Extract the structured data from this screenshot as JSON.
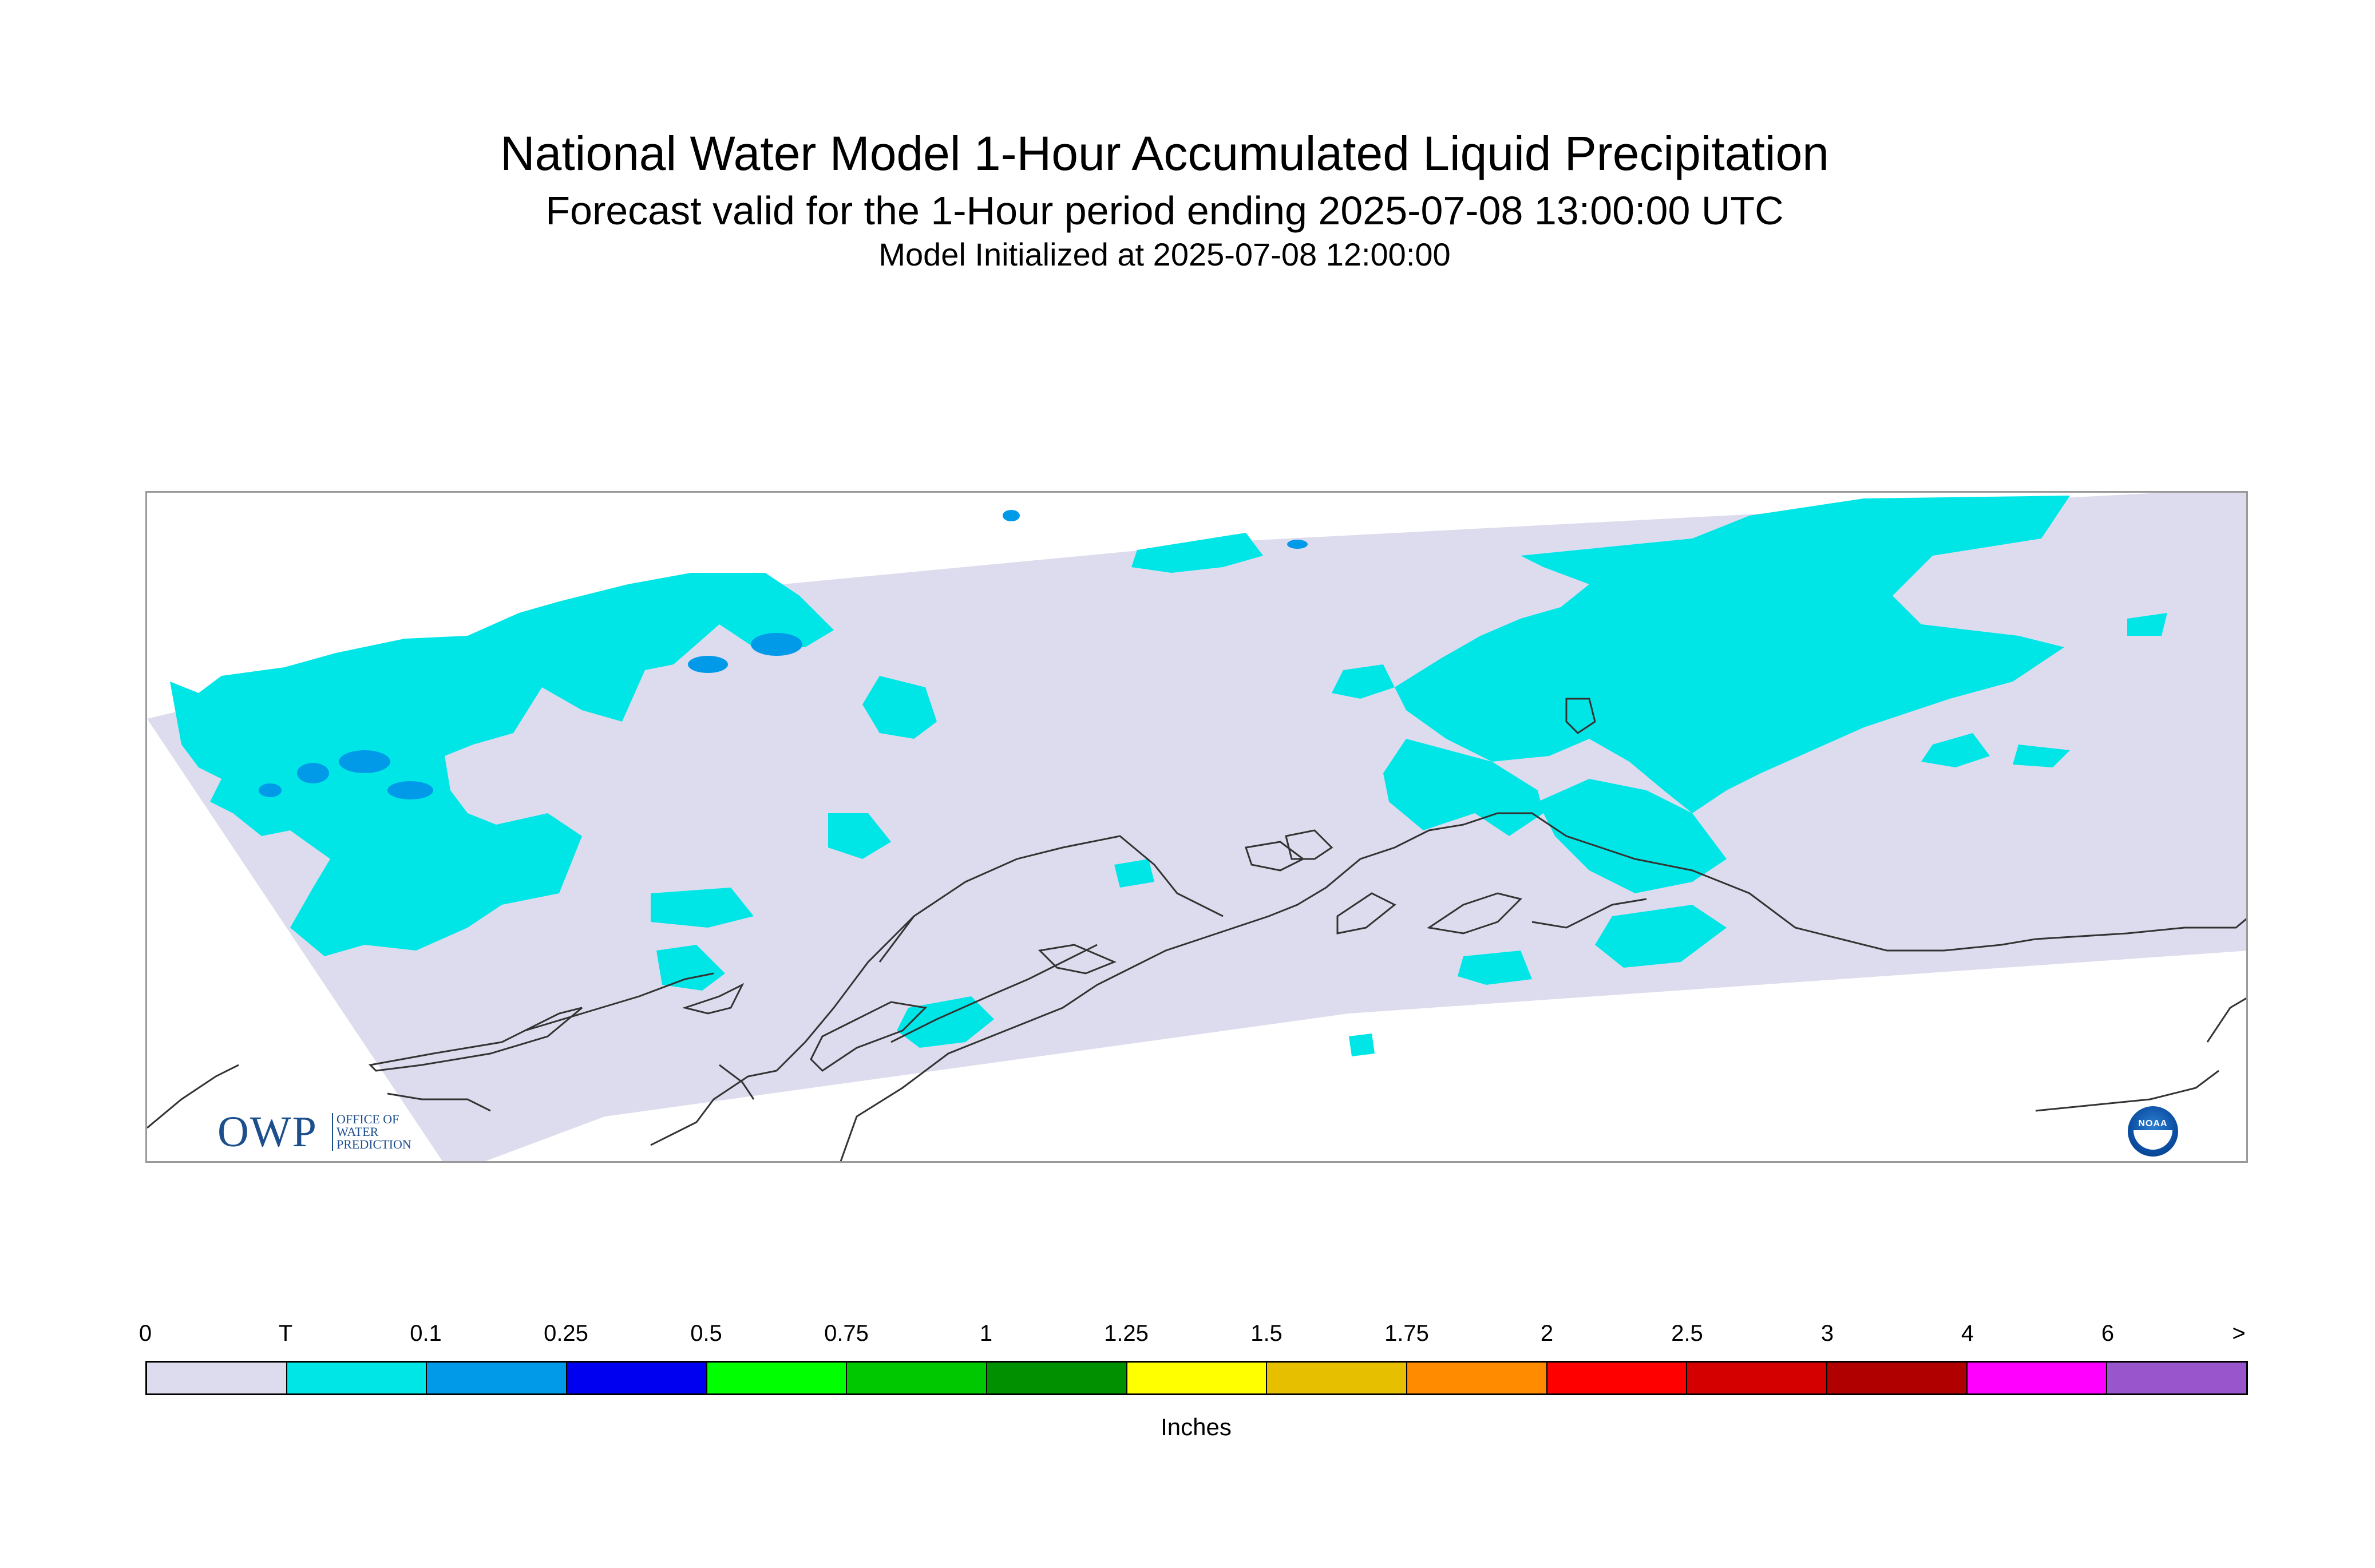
{
  "title": "National Water Model 1-Hour Accumulated Liquid Precipitation",
  "subtitle": "Forecast valid for the 1-Hour period ending 2025-07-08 13:00:00 UTC",
  "init_text": "Model Initialized at 2025-07-08 12:00:00",
  "logo_owp": {
    "text": "OWP",
    "tagline": "OFFICE OF\nWATER\nPREDICTION"
  },
  "logo_noaa": {
    "text": "NOAA"
  },
  "legend": {
    "units": "Inches",
    "tick_labels": [
      "0",
      "T",
      "0.1",
      "0.25",
      "0.5",
      "0.75",
      "1",
      "1.25",
      "1.5",
      "1.75",
      "2",
      "2.5",
      "3",
      "4",
      "6",
      ">"
    ],
    "colors": [
      "#dcdcee",
      "#00e6e6",
      "#009ae8",
      "#0000f0",
      "#00ff00",
      "#00c800",
      "#009000",
      "#ffff00",
      "#e6c000",
      "#ff8c00",
      "#ff0000",
      "#d40000",
      "#b00000",
      "#ff00ff",
      "#9955cc"
    ]
  },
  "map": {
    "region": "Alaska",
    "domain_color": "#dcdcee",
    "trace_color": "#00e6e6",
    "light_color": "#009ae8",
    "coast_color": "#333333"
  }
}
